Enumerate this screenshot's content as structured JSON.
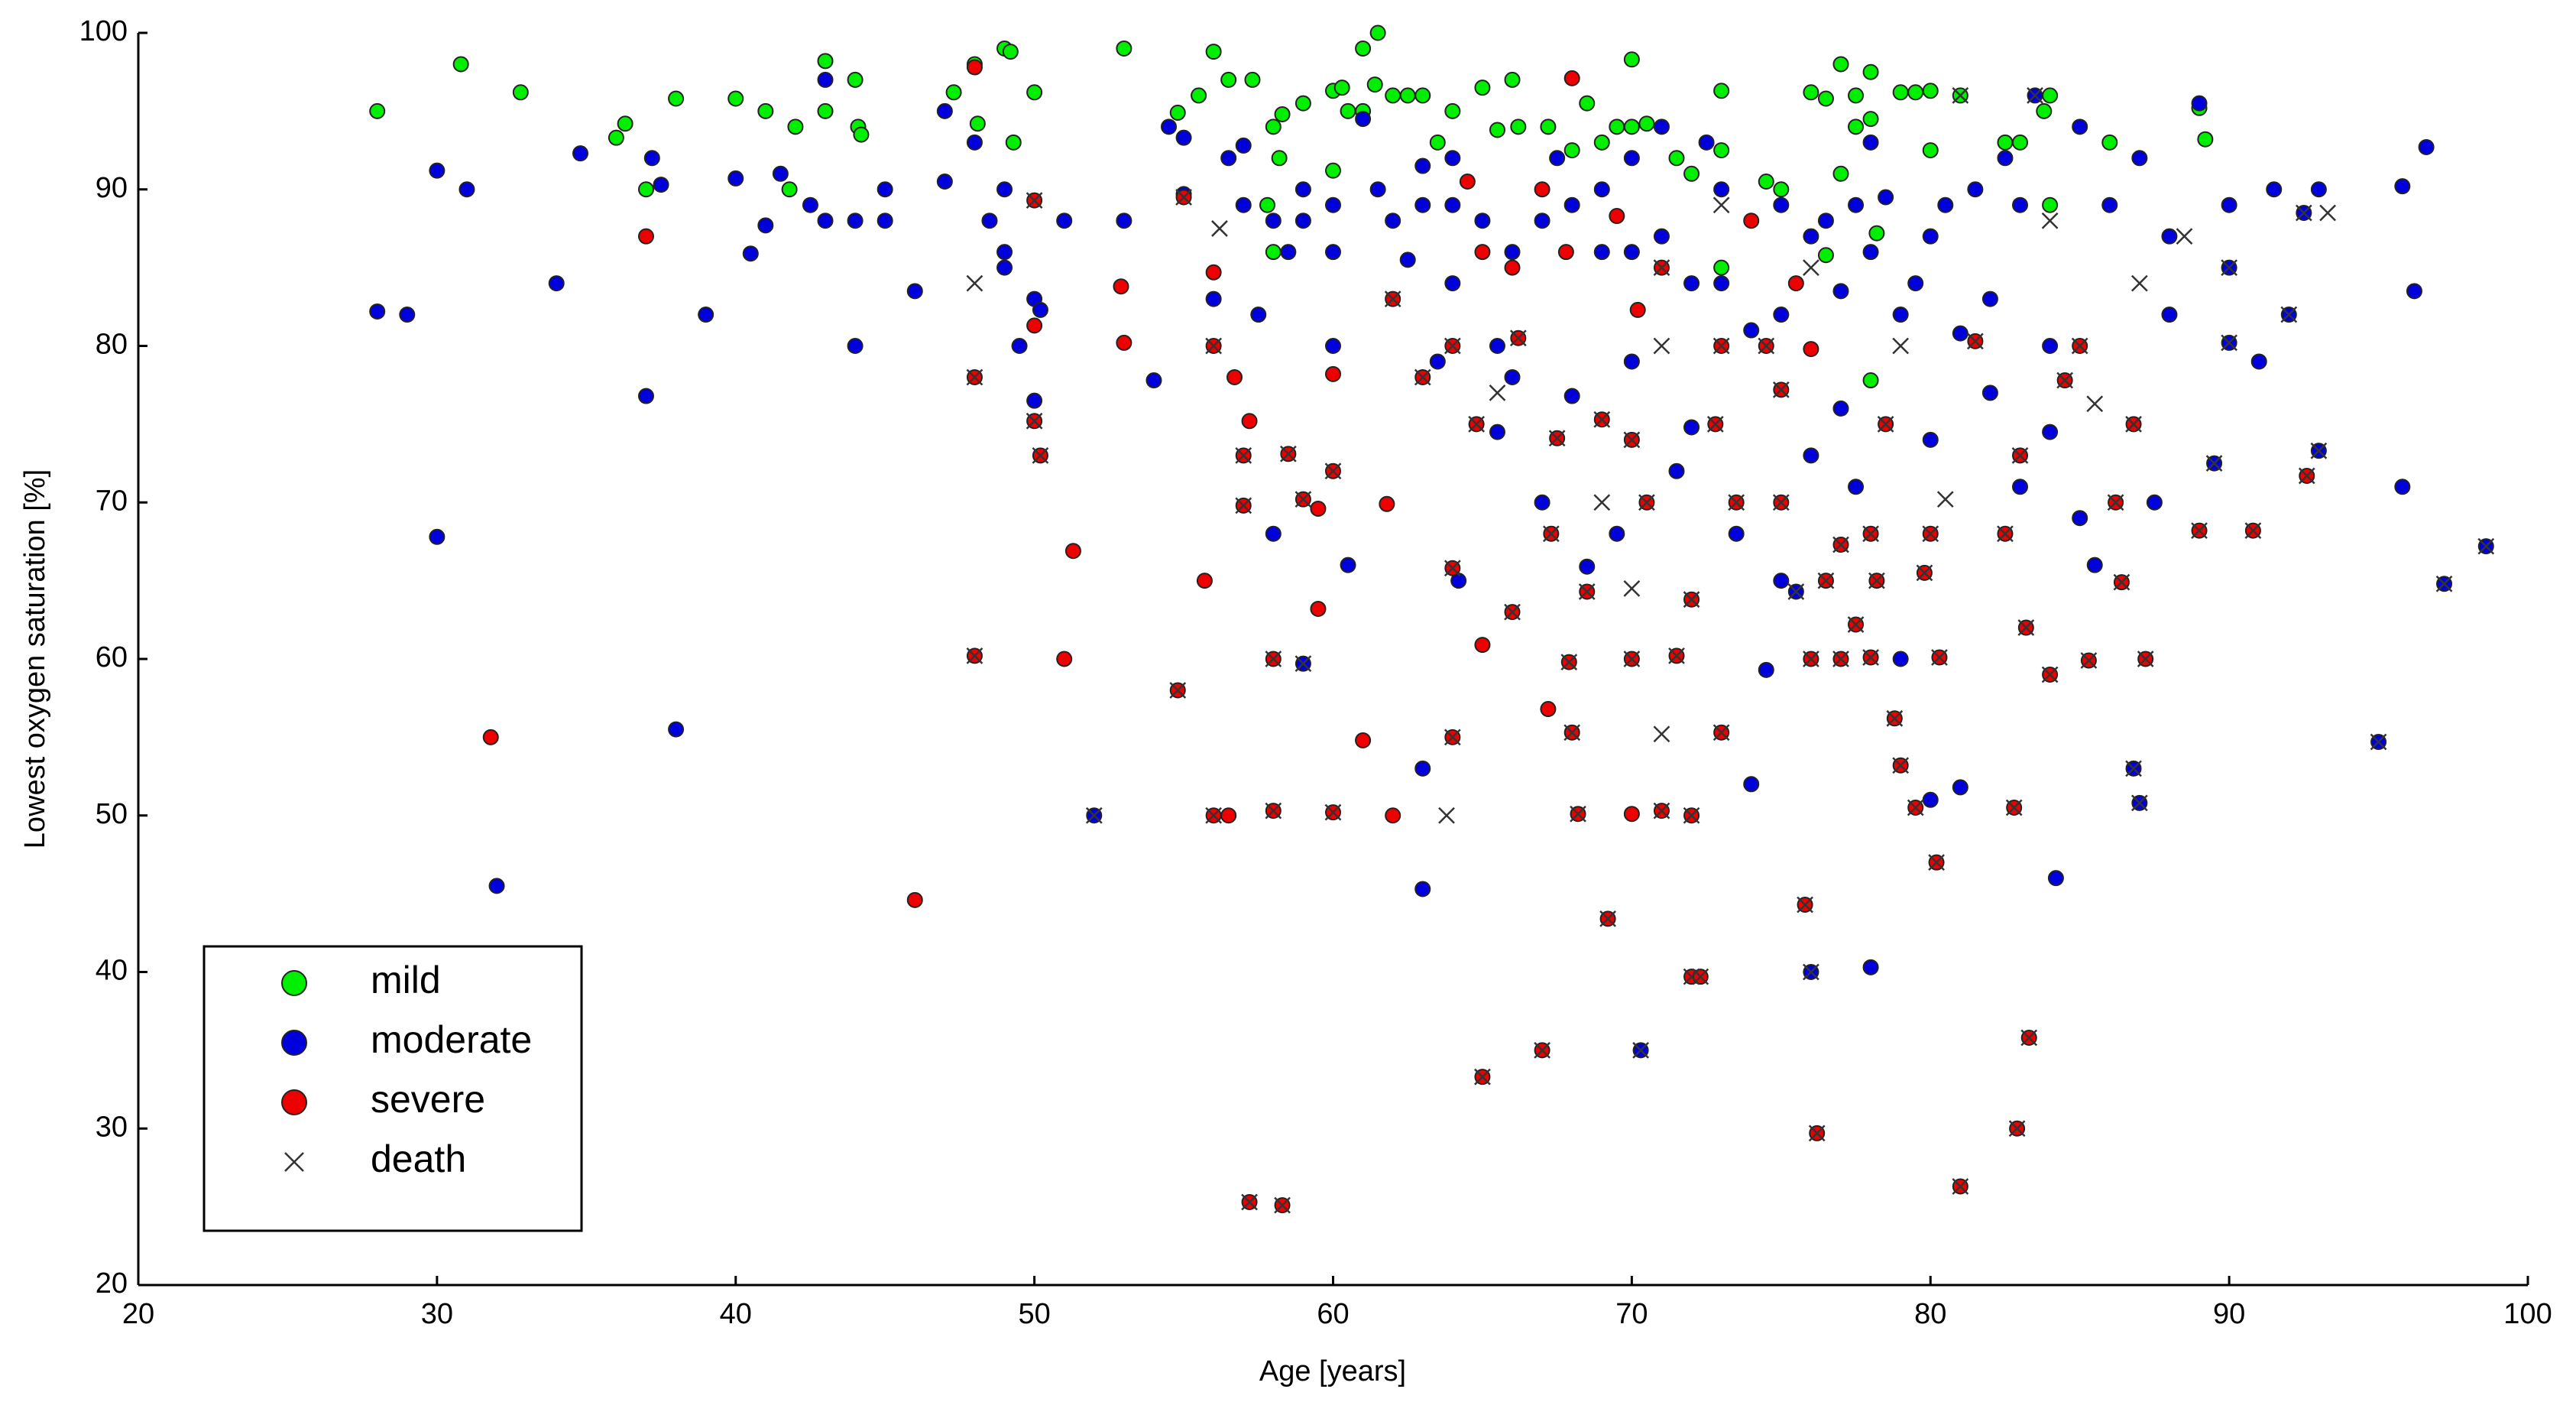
{
  "chart_data": {
    "type": "scatter",
    "x_label": "Age [years]",
    "y_label": "Lowest oxygen saturation [%]",
    "xlim": [
      20,
      100
    ],
    "ylim": [
      20,
      100
    ],
    "xticks": [
      20,
      30,
      40,
      50,
      60,
      70,
      80,
      90,
      100
    ],
    "yticks": [
      20,
      30,
      40,
      50,
      60,
      70,
      80,
      90,
      100
    ],
    "grid": false,
    "legend": "lower left",
    "series": [
      {
        "name": "mild",
        "color": "#00ee00",
        "marker": "circle",
        "x": [
          28,
          30.8,
          32.8,
          36,
          36.3,
          37,
          38,
          40,
          41,
          41.8,
          42,
          43,
          43,
          44,
          44.1,
          44.2,
          47.3,
          48,
          48.1,
          49,
          49.2,
          49.3,
          50,
          53,
          54.8,
          55.5,
          56,
          56.5,
          57.3,
          57.8,
          58,
          58,
          58.2,
          58.3,
          59,
          60,
          60,
          60.3,
          60.5,
          61,
          61,
          61.4,
          61.5,
          62,
          62.5,
          63,
          63.5,
          64,
          65,
          65.5,
          66,
          66.2,
          67.2,
          68,
          68.5,
          69,
          69.5,
          70,
          70,
          70.5,
          71.5,
          72,
          73,
          73,
          74.5,
          75,
          76,
          76.5,
          77,
          77,
          77.5,
          77.5,
          78,
          78,
          78.2,
          79,
          79.5,
          80,
          80,
          81,
          82.5,
          83,
          83.8,
          84,
          84,
          86,
          89,
          89.2,
          78,
          73,
          76.5
        ],
        "y": [
          95,
          98,
          96.2,
          93.3,
          94.2,
          90,
          95.8,
          95.8,
          95,
          90,
          94,
          98.2,
          95,
          97,
          94,
          93.5,
          96.2,
          98,
          94.2,
          99,
          98.8,
          93,
          96.2,
          99,
          94.9,
          96,
          98.8,
          97,
          97,
          89,
          94,
          86,
          92,
          94.8,
          95.5,
          96.3,
          91.2,
          96.5,
          95,
          99,
          95,
          96.7,
          100,
          96,
          96,
          96,
          93,
          95,
          96.5,
          93.8,
          97,
          94,
          94,
          92.5,
          95.5,
          93,
          94,
          98.3,
          94,
          94.2,
          92,
          91,
          96.3,
          92.5,
          90.5,
          90,
          96.2,
          95.8,
          91,
          98,
          96,
          94,
          97.5,
          94.5,
          87.2,
          96.2,
          96.2,
          96.3,
          92.5,
          96,
          93,
          93,
          95,
          96,
          89,
          93,
          95.2,
          93.2,
          77.8,
          85,
          85.8
        ]
      },
      {
        "name": "moderate",
        "color": "#0000dd",
        "marker": "circle",
        "x": [
          28,
          29,
          30,
          30,
          31,
          32,
          34,
          34.8,
          37,
          37.2,
          37.5,
          38,
          39,
          40,
          40.5,
          41,
          41.5,
          42.5,
          43,
          43,
          44,
          44,
          45,
          45,
          46,
          47,
          47,
          48,
          48.5,
          49,
          49,
          49,
          49.5,
          50,
          50,
          50.2,
          51,
          52,
          53,
          54,
          54.5,
          55,
          55,
          56,
          56.5,
          57,
          57,
          57.5,
          58,
          58,
          58.5,
          59,
          59,
          59,
          60,
          60,
          60,
          60.5,
          61,
          61.5,
          62,
          62.5,
          63,
          63,
          63,
          63,
          63.5,
          64,
          64,
          64,
          64.2,
          65,
          65.5,
          65.5,
          66,
          66,
          67,
          67,
          67.5,
          68,
          68,
          68.5,
          69,
          69,
          69.5,
          70,
          70,
          70,
          70.3,
          71,
          71,
          71.5,
          72,
          72,
          72.5,
          73,
          73,
          73.5,
          74,
          74,
          74.5,
          75,
          75,
          75,
          75.5,
          76,
          76,
          76,
          76.5,
          77,
          77,
          77.5,
          77.5,
          78,
          78,
          78,
          78.5,
          79,
          79,
          79.5,
          80,
          80,
          80,
          80.5,
          81,
          81,
          81.5,
          82,
          82,
          82.5,
          83,
          83,
          83.5,
          84,
          84,
          84.2,
          85,
          85,
          85.5,
          86,
          86.8,
          87,
          87,
          87.5,
          88,
          88,
          89,
          89.5,
          90,
          90,
          90,
          91,
          91.5,
          92,
          92.5,
          93,
          93,
          95,
          95.8,
          95.8,
          96.2,
          96.6,
          97.2,
          98.6
        ],
        "y": [
          82.2,
          82,
          91.2,
          67.8,
          90,
          45.5,
          84,
          92.3,
          76.8,
          92,
          90.3,
          55.5,
          82,
          90.7,
          85.9,
          87.7,
          91,
          89,
          88,
          97,
          80,
          88,
          90,
          88,
          83.5,
          90.5,
          95,
          93,
          88,
          85,
          90,
          86,
          80,
          76.5,
          83,
          82.3,
          88,
          50,
          88,
          77.8,
          94,
          89.7,
          93.3,
          83,
          92,
          89,
          92.8,
          82,
          88,
          68,
          86,
          90,
          88,
          59.7,
          80,
          86,
          89,
          66,
          94.5,
          90,
          88,
          85.5,
          91.5,
          89,
          53,
          45.3,
          79,
          89,
          84,
          92,
          65,
          88,
          80,
          74.5,
          78,
          86,
          88,
          70,
          92,
          89,
          76.8,
          65.9,
          90,
          86,
          68,
          79,
          86,
          92,
          35,
          94,
          87,
          72,
          84,
          74.8,
          93,
          90,
          84,
          68,
          52,
          81,
          59.3,
          89,
          82,
          65,
          64.3,
          87,
          73,
          40,
          88,
          83.5,
          76,
          89,
          71,
          93,
          86,
          40.3,
          89.5,
          82,
          60,
          84,
          51,
          87,
          74,
          89,
          51.8,
          80.8,
          90,
          77,
          83,
          92,
          71,
          89,
          96,
          80,
          74.5,
          46,
          94,
          69,
          66,
          89,
          53,
          50.8,
          92,
          70,
          82,
          87,
          95.5,
          72.5,
          89,
          80.2,
          85,
          79,
          90,
          82,
          88.5,
          90,
          73.3,
          54.7,
          71,
          90.2,
          83.5,
          92.7,
          64.8,
          67.2
        ]
      },
      {
        "name": "severe",
        "color": "#ee0000",
        "marker": "circle",
        "x": [
          31.8,
          37,
          46,
          48,
          48,
          48,
          50,
          50,
          50,
          50.2,
          51,
          51.3,
          52.9,
          53,
          54.8,
          55,
          55.7,
          56,
          56,
          56,
          56.5,
          56.7,
          57,
          57,
          57.2,
          57.2,
          58,
          58,
          58.3,
          58.5,
          59,
          59.5,
          59.5,
          60,
          60,
          60,
          61,
          61.8,
          62,
          62,
          63,
          64,
          64,
          64,
          64.5,
          64.8,
          65,
          65,
          65,
          66,
          66,
          66.2,
          67,
          67,
          67.2,
          67.3,
          67.5,
          67.8,
          67.9,
          68,
          68.2,
          68,
          68.5,
          69,
          69.2,
          69.5,
          70,
          70,
          70,
          70.2,
          70.5,
          71,
          71,
          71.5,
          72,
          72,
          72,
          72.3,
          72.8,
          73,
          73,
          73.5,
          74,
          74.5,
          75,
          75,
          75.5,
          75.8,
          76,
          76,
          76.2,
          76.5,
          77,
          77,
          77.5,
          78,
          78,
          78.2,
          78.5,
          78.8,
          79,
          79.5,
          79.8,
          80,
          80.2,
          80.3,
          81,
          81.5,
          82.5,
          82.8,
          82.9,
          83,
          83.2,
          83.3,
          84,
          84.5,
          85,
          85.3,
          86.2,
          86.4,
          86.8,
          87.2,
          89,
          90.8,
          92.6
        ],
        "y": [
          55,
          87,
          44.6,
          97.8,
          78,
          60.2,
          89.3,
          81.3,
          75.2,
          73,
          60,
          66.9,
          83.8,
          80.2,
          58,
          89.5,
          65,
          50,
          84.7,
          80,
          50,
          78,
          69.8,
          73,
          75.2,
          25.3,
          60,
          50.3,
          25.1,
          73.1,
          70.2,
          63.2,
          69.6,
          72,
          78.2,
          50.2,
          54.8,
          69.9,
          50,
          83,
          78,
          80,
          65.8,
          55,
          90.5,
          75,
          33.3,
          60.9,
          86,
          63,
          85,
          80.5,
          35,
          90,
          56.8,
          68,
          74.1,
          86,
          59.8,
          55.3,
          50.1,
          97.1,
          64.3,
          75.3,
          43.4,
          88.3,
          60,
          74,
          50.1,
          82.3,
          70,
          85,
          50.3,
          60.2,
          39.7,
          50,
          63.8,
          39.7,
          75,
          55.3,
          80,
          70,
          88,
          80,
          77.2,
          70,
          84,
          44.3,
          60,
          79.8,
          29.7,
          65,
          67.3,
          60,
          62.2,
          68,
          60.1,
          65,
          75,
          56.2,
          53.2,
          50.5,
          65.5,
          68,
          47,
          60.1,
          26.3,
          80.3,
          68,
          50.5,
          30,
          73,
          62,
          35.8,
          59,
          77.8,
          80,
          59.9,
          70,
          64.9,
          75,
          60,
          68.2,
          68.2,
          71.7
        ]
      },
      {
        "name": "death",
        "color": "#333333",
        "marker": "x",
        "x": [
          48,
          48,
          48,
          50,
          50,
          50.2,
          52,
          54.8,
          55,
          56,
          56,
          56.2,
          57,
          57,
          57.2,
          58,
          58,
          58.3,
          58.5,
          59,
          59,
          60,
          60,
          62,
          63,
          63.8,
          64,
          64,
          64,
          64.8,
          65,
          65.5,
          66,
          66.2,
          67,
          67.3,
          67.5,
          67.9,
          68,
          68.2,
          68.5,
          69,
          69,
          69.2,
          70,
          70,
          70,
          70.3,
          70.5,
          71,
          71,
          71,
          71.5,
          71,
          72,
          72,
          72,
          72.3,
          72.8,
          73,
          73,
          73,
          73.5,
          74.5,
          75,
          75,
          75.5,
          75.8,
          76,
          76,
          76,
          76.2,
          76.5,
          77,
          77,
          77.5,
          78,
          78,
          78.2,
          78.5,
          78.8,
          79,
          79,
          79.5,
          79.8,
          80,
          80.2,
          80.3,
          80.5,
          81,
          81,
          81.5,
          82.5,
          82.8,
          82.9,
          83,
          83.2,
          83.3,
          83.5,
          84,
          84,
          84.5,
          85,
          85.3,
          85.5,
          86.2,
          86.4,
          86.8,
          86.8,
          87,
          87,
          87.2,
          88.5,
          89,
          89.5,
          90,
          90,
          90.8,
          92,
          92.6,
          92.5,
          93,
          93.3,
          95,
          97.2,
          98.6
        ],
        "y": [
          78,
          60.2,
          84,
          89.3,
          75.2,
          73,
          50,
          58,
          89.5,
          50,
          80,
          87.5,
          69.8,
          73,
          25.3,
          60,
          50.3,
          25.1,
          73.1,
          70.2,
          59.7,
          72,
          50.2,
          83,
          78,
          50,
          80,
          65.8,
          55,
          75,
          33.3,
          77,
          63,
          80.5,
          35,
          68,
          74.1,
          59.8,
          55.3,
          50.1,
          64.3,
          70,
          75.3,
          43.4,
          60,
          74,
          64.5,
          35,
          70,
          85,
          55.2,
          50.3,
          60.2,
          80,
          39.7,
          50,
          63.8,
          39.7,
          75,
          55.3,
          80,
          89,
          70,
          80,
          77.2,
          70,
          64.3,
          44.3,
          60,
          40,
          85,
          29.7,
          65,
          67.3,
          60,
          62.2,
          68,
          60.1,
          65,
          75,
          56.2,
          53.2,
          80,
          50.5,
          65.5,
          68,
          47,
          60.1,
          70.2,
          26.3,
          96,
          80.3,
          68,
          50.5,
          30,
          73,
          62,
          35.8,
          96,
          59,
          88,
          77.8,
          80,
          59.9,
          76.3,
          70,
          64.9,
          53,
          75,
          84,
          50.8,
          60,
          87,
          68.2,
          72.5,
          85,
          80.2,
          68.2,
          82,
          71.7,
          88.5,
          73.3,
          88.5,
          54.7,
          64.8,
          67.2
        ]
      }
    ]
  }
}
